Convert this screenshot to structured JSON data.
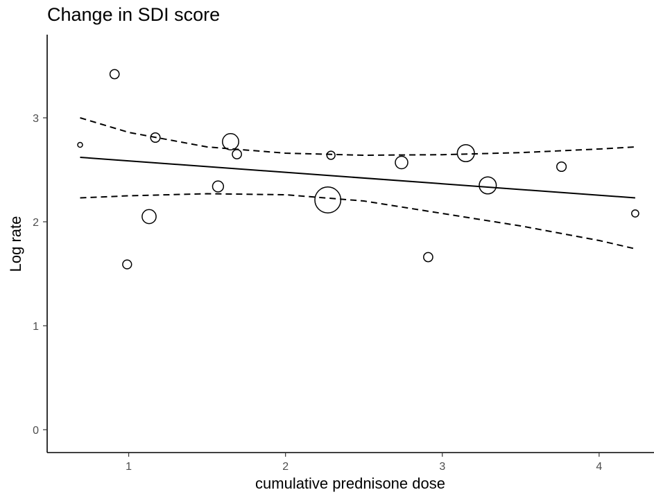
{
  "chart_data": {
    "type": "scatter",
    "title": "Change in SDI score",
    "xlabel": "cumulative prednisone dose",
    "ylabel": "Log rate",
    "xlim": [
      0.48,
      4.35
    ],
    "ylim": [
      -0.22,
      3.8
    ],
    "x_ticks": [
      1,
      2,
      3,
      4
    ],
    "y_ticks": [
      0,
      1,
      2,
      3
    ],
    "grid": false,
    "legend": "none",
    "points": [
      {
        "x": 0.69,
        "y": 2.74,
        "w": 1.6
      },
      {
        "x": 0.91,
        "y": 3.42,
        "w": 3.0
      },
      {
        "x": 0.99,
        "y": 1.59,
        "w": 2.9
      },
      {
        "x": 1.13,
        "y": 2.05,
        "w": 4.6
      },
      {
        "x": 1.17,
        "y": 2.81,
        "w": 3.1
      },
      {
        "x": 1.57,
        "y": 2.34,
        "w": 3.6
      },
      {
        "x": 1.65,
        "y": 2.77,
        "w": 5.3
      },
      {
        "x": 1.69,
        "y": 2.65,
        "w": 3.0
      },
      {
        "x": 2.27,
        "y": 2.21,
        "w": 8.5
      },
      {
        "x": 2.29,
        "y": 2.64,
        "w": 2.7
      },
      {
        "x": 2.74,
        "y": 2.57,
        "w": 4.1
      },
      {
        "x": 2.91,
        "y": 1.66,
        "w": 3.0
      },
      {
        "x": 3.15,
        "y": 2.66,
        "w": 5.6
      },
      {
        "x": 3.29,
        "y": 2.35,
        "w": 5.6
      },
      {
        "x": 3.76,
        "y": 2.53,
        "w": 3.1
      },
      {
        "x": 4.23,
        "y": 2.08,
        "w": 2.3
      }
    ],
    "fit_line": {
      "x": [
        0.69,
        4.23
      ],
      "y": [
        2.62,
        2.23
      ]
    },
    "ci_upper": {
      "x": [
        0.69,
        1.0,
        1.5,
        2.0,
        2.5,
        3.0,
        3.5,
        4.0,
        4.23
      ],
      "y": [
        3.0,
        2.86,
        2.72,
        2.66,
        2.64,
        2.645,
        2.665,
        2.7,
        2.72
      ]
    },
    "ci_lower": {
      "x": [
        0.69,
        1.0,
        1.5,
        2.0,
        2.5,
        3.0,
        3.5,
        4.0,
        4.23
      ],
      "y": [
        2.23,
        2.25,
        2.27,
        2.26,
        2.2,
        2.08,
        1.96,
        1.82,
        1.74
      ]
    },
    "colors": {
      "marks": "#000000",
      "tick_labels": "#4d4d4d",
      "background": "#ffffff"
    }
  }
}
